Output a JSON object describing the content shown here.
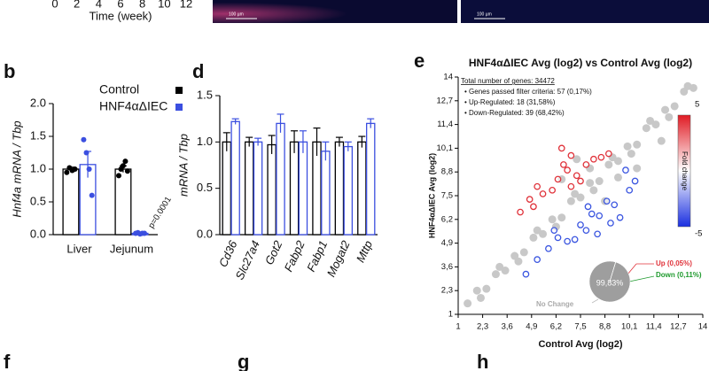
{
  "top_strip": {
    "xticks": [
      0,
      2,
      4,
      6,
      8,
      10,
      12
    ],
    "xlabel": "Time (week)",
    "scale_bars": [
      "100 µm",
      "100 µm"
    ]
  },
  "panel_labels": [
    "b",
    "d",
    "e",
    "f",
    "g",
    "h"
  ],
  "chart_data": [
    {
      "type": "bar",
      "ylabel": "Hnf4a mRNA / Tbp",
      "categories": [
        "Liver",
        "Jejunum"
      ],
      "ylim": [
        0,
        2
      ],
      "yticks": [
        {
          "value": 0,
          "label": "0.0"
        },
        {
          "value": 0.5,
          "label": "0.5"
        },
        {
          "value": 1,
          "label": "1.0"
        },
        {
          "value": 1.5,
          "label": "1.5"
        },
        {
          "value": 2,
          "label": "2.0"
        }
      ],
      "series": [
        {
          "name": "Control",
          "color": "#000000",
          "values": [
            1.0,
            1.0
          ],
          "errors": [
            0.03,
            0.05
          ],
          "points": [
            [
              0.95,
              1.02,
              0.98,
              1.0
            ],
            [
              0.9,
              1.0,
              1.05,
              1.12,
              0.97
            ]
          ]
        },
        {
          "name": "HNF4αΔIEC",
          "color": "#3b4fe0",
          "values": [
            1.07,
            0.02
          ],
          "errors": [
            0.2,
            0.005
          ],
          "points": [
            [
              1.45,
              1.25,
              1.0,
              0.6
            ],
            [
              0.02,
              0.03,
              0.01,
              0.02,
              0.02
            ]
          ]
        }
      ],
      "annotations": [
        "p=0.0001"
      ]
    },
    {
      "type": "bar",
      "ylabel": "mRNA / Tbp",
      "categories": [
        "Cd36",
        "Slc27a4",
        "Got2",
        "Fabp2",
        "Fabp1",
        "Mogat2",
        "Mttp"
      ],
      "ylim": [
        0,
        1.5
      ],
      "yticks": [
        {
          "value": 0,
          "label": "0.0"
        },
        {
          "value": 0.5,
          "label": "0.5"
        },
        {
          "value": 1,
          "label": "1.0"
        },
        {
          "value": 1.5,
          "label": "1.5"
        }
      ],
      "series": [
        {
          "name": "Control",
          "color": "#000000",
          "values": [
            1.0,
            1.0,
            0.97,
            1.0,
            1.0,
            1.0,
            1.0
          ],
          "errors": [
            0.1,
            0.05,
            0.1,
            0.12,
            0.15,
            0.05,
            0.06
          ]
        },
        {
          "name": "HNF4αΔIEC",
          "color": "#3b4fe0",
          "values": [
            1.22,
            1.0,
            1.2,
            1.0,
            0.9,
            0.95,
            1.2
          ],
          "errors": [
            0.03,
            0.04,
            0.1,
            0.12,
            0.1,
            0.05,
            0.05
          ]
        }
      ]
    },
    {
      "type": "scatter",
      "title": "HNF4αΔIEC Avg (log2) vs Control Avg (log2)",
      "xlabel": "Control Avg (log2)",
      "ylabel": "HNF4αΔIEC Avg (log2)",
      "xlim": [
        1,
        14
      ],
      "ylim": [
        1,
        14
      ],
      "xticks": [
        1,
        {
          "value": 2.3,
          "label": "2,3"
        },
        {
          "value": 3.6,
          "label": "3,6"
        },
        {
          "value": 4.9,
          "label": "4,9"
        },
        {
          "value": 6.2,
          "label": "6,2"
        },
        {
          "value": 7.5,
          "label": "7,5"
        },
        {
          "value": 8.8,
          "label": "8,8"
        },
        {
          "value": 10.1,
          "label": "10,1"
        },
        {
          "value": 11.4,
          "label": "11,4"
        },
        {
          "value": 12.7,
          "label": "12,7"
        },
        14
      ],
      "yticks": [
        1,
        {
          "value": 2.3,
          "label": "2,3"
        },
        {
          "value": 3.6,
          "label": "3,6"
        },
        {
          "value": 4.9,
          "label": "4,9"
        },
        {
          "value": 6.2,
          "label": "6,2"
        },
        {
          "value": 7.5,
          "label": "7,5"
        },
        {
          "value": 8.8,
          "label": "8,8"
        },
        {
          "value": 10.1,
          "label": "10,1"
        },
        {
          "value": 11.4,
          "label": "11,4"
        },
        {
          "value": 12.7,
          "label": "12,7"
        },
        14
      ],
      "stats": [
        "Total number of genes: 34472",
        "• Genes passed filter criteria: 57 (0,17%)",
        "• Up-Regulated: 18 (31,58%)",
        "• Down-Regulated: 39 (68,42%)"
      ],
      "series": [
        {
          "name": "No Change",
          "color": "#c8c8c8",
          "x": [
            1.5,
            2,
            2.5,
            3,
            3.5,
            4,
            4.5,
            5,
            5.5,
            6,
            6.5,
            7,
            7.5,
            8,
            8.5,
            9,
            9.5,
            10,
            10.5,
            11,
            11.5,
            12,
            12.5,
            13,
            13.5,
            2.2,
            3.2,
            4.2,
            5.2,
            6.2,
            7.2,
            8.2,
            9.2,
            10.2,
            11.2,
            12.2,
            13.2,
            6.5,
            7.3,
            8.8,
            10.5,
            11.8,
            9.5,
            8
          ],
          "values": [
            1.6,
            2.3,
            2.4,
            3.2,
            3.4,
            4.2,
            4.4,
            5.2,
            5.4,
            6.2,
            6.3,
            7.2,
            7.4,
            8.2,
            8.3,
            9.2,
            9.4,
            10.2,
            10.3,
            11.2,
            11.4,
            12.2,
            12.4,
            13.2,
            13.4,
            1.9,
            3.6,
            3.9,
            5.6,
            5.8,
            7.6,
            7.8,
            9.6,
            9.8,
            11.6,
            11.8,
            13.5,
            8.4,
            9.5,
            7.2,
            9,
            10.5,
            8.5,
            9
          ]
        },
        {
          "name": "Up (0,05%)",
          "color": "#e0323a",
          "x": [
            6.5,
            7,
            7.3,
            6.3,
            5.2,
            4.8,
            5.5,
            7.8,
            8.2,
            6.8,
            9,
            4.3,
            7.5,
            6,
            8.6,
            5,
            6.6,
            7
          ],
          "values": [
            10.1,
            9.7,
            8.6,
            8.4,
            8.0,
            7.3,
            7.6,
            9.2,
            9.5,
            8.9,
            9.8,
            6.6,
            8.3,
            7.8,
            9.6,
            6.9,
            9.2,
            8.0
          ]
        },
        {
          "name": "Down (0,11%)",
          "color": "#3a55e0",
          "x": [
            9.9,
            10.1,
            9.6,
            8.5,
            7.8,
            8.1,
            7.2,
            6.3,
            4.6,
            5.8,
            7.5,
            8.9,
            10.4,
            9.3,
            6.8,
            5.2,
            7.9,
            8.4,
            9.1,
            6.1
          ],
          "values": [
            8.9,
            7.8,
            6.3,
            6.4,
            5.6,
            6.5,
            5.1,
            5.2,
            3.2,
            4.6,
            5.9,
            7.2,
            8.3,
            7.0,
            5.0,
            4.0,
            6.9,
            5.4,
            6.0,
            5.6
          ]
        }
      ],
      "colorbar": {
        "label": "Fold change",
        "lim": [
          -5,
          5
        ],
        "ticks": [
          5,
          -5
        ]
      },
      "pie": {
        "values": [
          99.83,
          0.05,
          0.11
        ],
        "colors": [
          "#9e9e9e",
          "#e0323a",
          "#1f9a2e"
        ],
        "center_label": "99,83%"
      }
    }
  ]
}
